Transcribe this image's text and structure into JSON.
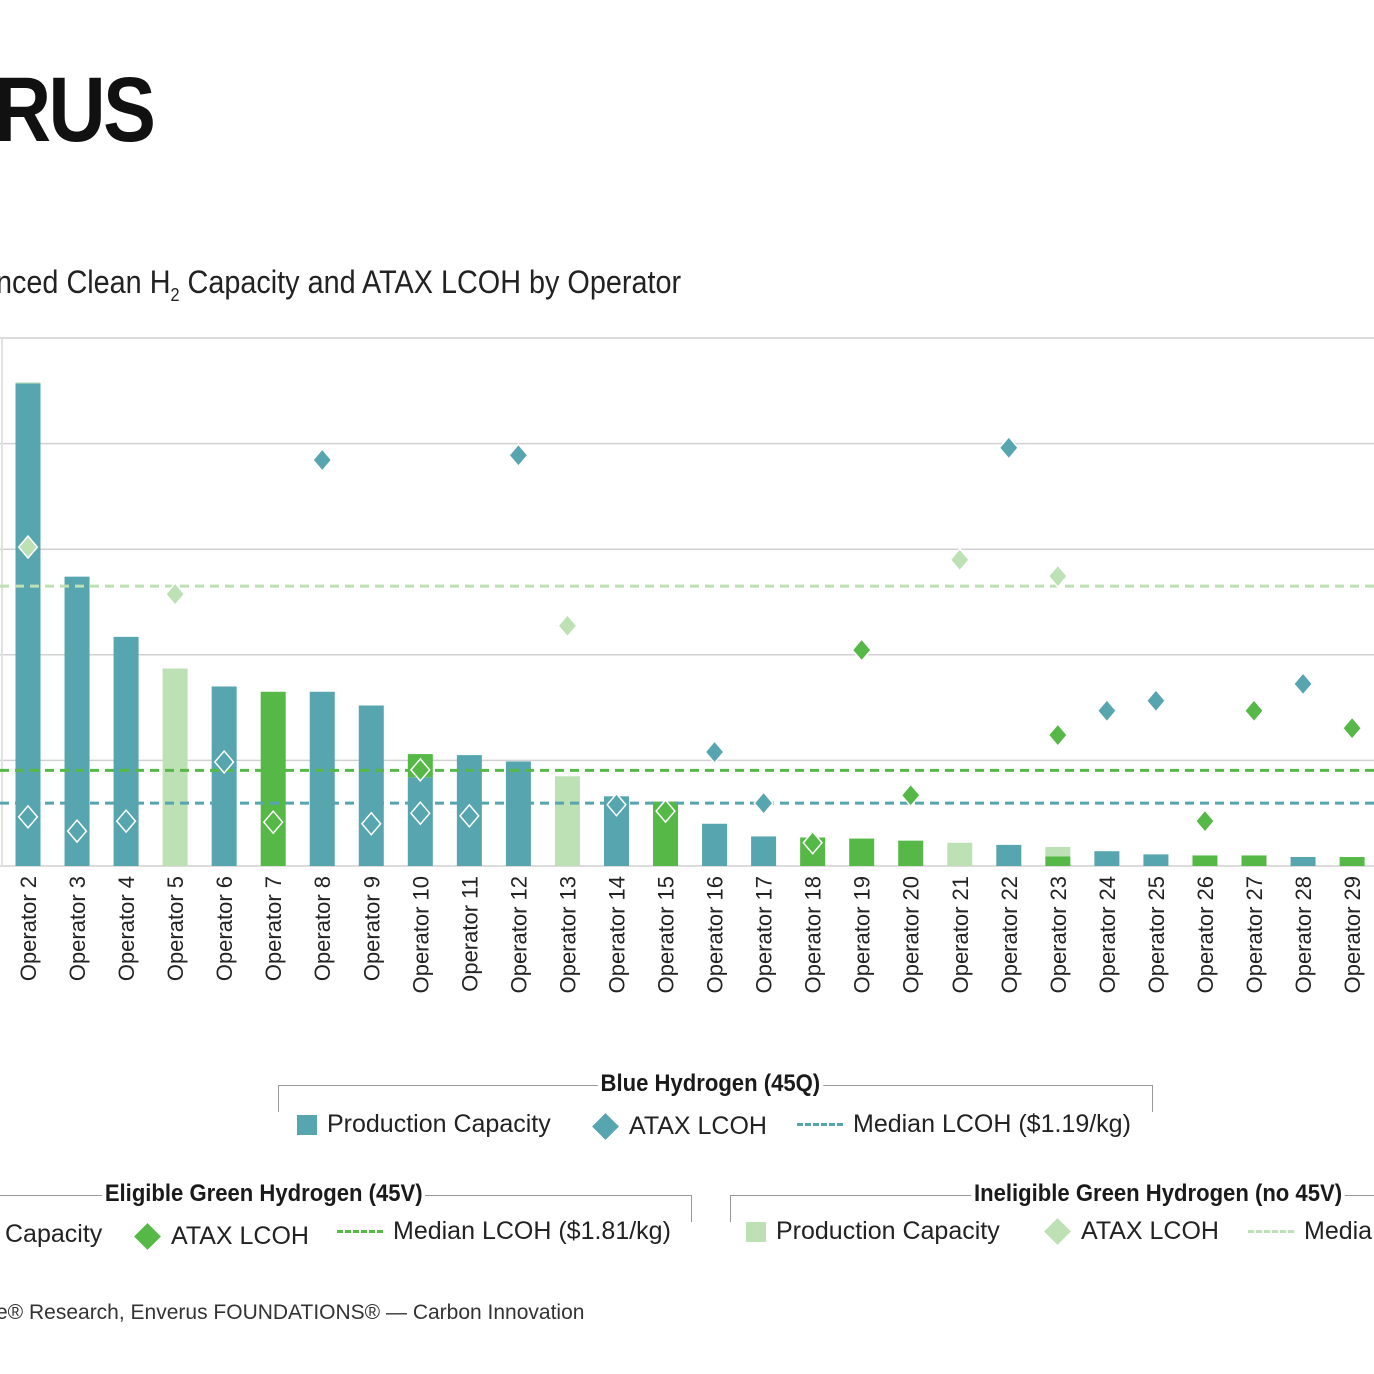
{
  "header": {
    "logo_text": "RUS",
    "title_pre": "nced Clean H",
    "title_sub": "2",
    "title_post": " Capacity and ATAX LCOH by Operator"
  },
  "colors": {
    "blue": "#57a5ae",
    "green": "#56b947",
    "ineligible": "#bde0b5",
    "grid": "#d0d0d0"
  },
  "chart_data": {
    "type": "bar",
    "subtype": "stacked bar with diamond scatter overlay and median reference lines",
    "categories": [
      "Operator 2",
      "Operator 3",
      "Operator 4",
      "Operator 5",
      "Operator 6",
      "Operator 7",
      "Operator 8",
      "Operator 9",
      "Operator 10",
      "Operator 11",
      "Operator 12",
      "Operator 13",
      "Operator 14",
      "Operator 15",
      "Operator 16",
      "Operator 17",
      "Operator 18",
      "Operator 19",
      "Operator 20",
      "Operator 21",
      "Operator 22",
      "Operator 23",
      "Operator 24",
      "Operator 25",
      "Operator 26",
      "Operator 27",
      "Operator 28",
      "Operator 29"
    ],
    "capacity_axis": {
      "ylim": [
        0,
        5
      ],
      "tick_labels_visible": false
    },
    "lcoh_axis": {
      "unit": "$/kg",
      "ylim": [
        0,
        10
      ],
      "tick_labels_visible": false
    },
    "grid": true,
    "capacity_series": [
      {
        "name": "Blue Hydrogen (45Q) Production Capacity",
        "color": "#57a5ae",
        "values": [
          4.57,
          2.74,
          2.17,
          null,
          1.7,
          null,
          1.65,
          1.52,
          0.84,
          1.05,
          0.99,
          null,
          0.66,
          null,
          0.4,
          0.28,
          null,
          null,
          null,
          null,
          0.2,
          null,
          0.14,
          0.11,
          null,
          null,
          0.085,
          null
        ]
      },
      {
        "name": "Eligible Green Hydrogen (45V) Production Capacity",
        "color": "#56b947",
        "values": [
          null,
          null,
          null,
          null,
          null,
          1.65,
          null,
          null,
          0.22,
          null,
          null,
          null,
          null,
          0.61,
          null,
          null,
          0.27,
          0.26,
          0.24,
          null,
          null,
          0.09,
          null,
          null,
          0.1,
          0.1,
          null,
          0.085
        ]
      },
      {
        "name": "Ineligible Green Hydrogen (no 45V) Production Capacity",
        "color": "#bde0b5",
        "values": [
          0.01,
          null,
          null,
          1.87,
          null,
          null,
          null,
          null,
          null,
          null,
          null,
          0.85,
          null,
          null,
          null,
          null,
          null,
          null,
          null,
          0.22,
          null,
          0.09,
          null,
          null,
          null,
          null,
          null,
          null
        ]
      }
    ],
    "lcoh_series": [
      {
        "name": "Blue Hydrogen (45Q) ATAX LCOH",
        "color": "#57a5ae",
        "values": [
          0.93,
          0.66,
          0.85,
          null,
          1.97,
          null,
          7.69,
          0.8,
          1.0,
          0.95,
          7.78,
          null,
          1.16,
          null,
          2.16,
          1.19,
          null,
          null,
          null,
          null,
          7.92,
          null,
          2.94,
          3.13,
          null,
          null,
          3.45,
          null
        ]
      },
      {
        "name": "Eligible Green Hydrogen (45V) ATAX LCOH",
        "color": "#56b947",
        "values": [
          null,
          null,
          null,
          null,
          null,
          0.83,
          null,
          null,
          1.82,
          null,
          null,
          null,
          null,
          1.04,
          null,
          null,
          0.44,
          4.09,
          1.34,
          null,
          null,
          2.48,
          null,
          null,
          0.85,
          2.94,
          null,
          2.61
        ]
      },
      {
        "name": "Ineligible Green Hydrogen (no 45V) ATAX LCOH",
        "color": "#bde0b5",
        "values": [
          6.04,
          null,
          null,
          5.15,
          null,
          null,
          null,
          null,
          null,
          null,
          null,
          4.55,
          null,
          null,
          null,
          null,
          null,
          null,
          null,
          5.8,
          null,
          5.49,
          null,
          null,
          null,
          null,
          null,
          null
        ]
      }
    ],
    "medians": [
      {
        "name": "Blue Median LCOH",
        "value": 1.19,
        "color": "#57a5ae"
      },
      {
        "name": "Eligible Green Median LCOH",
        "value": 1.81,
        "color": "#56b947"
      },
      {
        "name": "Ineligible Green Median LCOH",
        "value": 5.3,
        "color": "#bde0b5"
      }
    ]
  },
  "legend": {
    "blue": {
      "title": "Blue Hydrogen (45Q)",
      "capacity": "Production Capacity",
      "lcoh": "ATAX LCOH",
      "median": "Median LCOH ($1.19/kg)"
    },
    "green": {
      "title": "Eligible Green Hydrogen (45V)",
      "capacity": "Capacity",
      "lcoh": "ATAX LCOH",
      "median": "Median LCOH ($1.81/kg)"
    },
    "ineligible": {
      "title": "Ineligible Green Hydrogen (no 45V)",
      "capacity": "Production Capacity",
      "lcoh": "ATAX LCOH",
      "median": "Media"
    }
  },
  "source": "e® Research, Enverus FOUNDATIONS® — Carbon Innovation"
}
